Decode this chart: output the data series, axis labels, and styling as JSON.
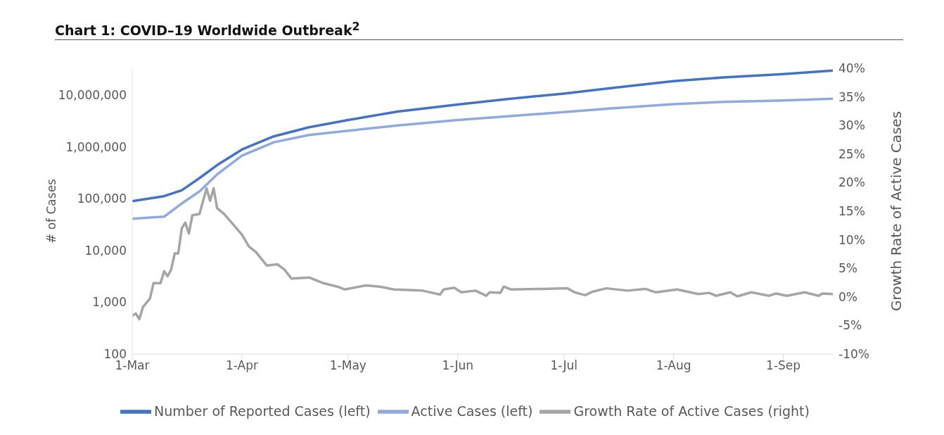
{
  "chart_data": {
    "type": "line",
    "title": "Chart 1: COVID–19 Worldwide Outbreak$^{2}$",
    "ylabel": "# of Cases",
    "y2label": "Growth Rate of Active Cases",
    "log": "y",
    "legend": "bottom",
    "line_style": "solid",
    "marker": "none",
    "xlim": [
      "--03-01",
      "--09-15"
    ],
    "xticks": [
      {
        "value": "--03-01",
        "label": "1-Mar"
      },
      {
        "value": "--04-01",
        "label": "1-Apr"
      },
      {
        "value": "--05-01",
        "label": "1-May"
      },
      {
        "value": "--06-01",
        "label": "1-Jun"
      },
      {
        "value": "--07-01",
        "label": "1-Jul"
      },
      {
        "value": "--08-01",
        "label": "1-Aug"
      },
      {
        "value": "--09-01",
        "label": "1-Sep"
      }
    ],
    "ylim": [
      100,
      33000000
    ],
    "yticks": [
      {
        "value": 100,
        "label": "100"
      },
      {
        "value": 1000,
        "label": "1,000"
      },
      {
        "value": 10000,
        "label": "10,000"
      },
      {
        "value": 100000,
        "label": "100,000"
      },
      {
        "value": 1000000,
        "label": "1,000,000"
      },
      {
        "value": 10000000,
        "label": "10,000,000"
      }
    ],
    "y2lim": [
      -10,
      40
    ],
    "y2ticks": [
      {
        "value": -10,
        "label": "-10%"
      },
      {
        "value": -5,
        "label": "-5%"
      },
      {
        "value": 0,
        "label": "0%"
      },
      {
        "value": 5,
        "label": "5%"
      },
      {
        "value": 10,
        "label": "10%"
      },
      {
        "value": 15,
        "label": "15%"
      },
      {
        "value": 20,
        "label": "20%"
      },
      {
        "value": 25,
        "label": "25%"
      },
      {
        "value": 30,
        "label": "30%"
      },
      {
        "value": 35,
        "label": "35%"
      },
      {
        "value": 40,
        "label": "40%"
      }
    ],
    "series": [
      {
        "name": "Number of Reported Cases (left)",
        "color": "#4472c4",
        "x": [
          "--03-01",
          "--03-10",
          "--03-15",
          "--03-20",
          "--03-25",
          "--04-01",
          "--04-10",
          "--04-20",
          "--05-01",
          "--05-15",
          "--06-01",
          "--06-15",
          "--07-01",
          "--07-15",
          "--08-01",
          "--08-15",
          "--09-01",
          "--09-15"
        ],
        "values": [
          90000,
          112000,
          145000,
          250000,
          445000,
          890000,
          1600000,
          2400000,
          3300000,
          4800000,
          6600000,
          8400000,
          10700000,
          13800000,
          18600000,
          22000000,
          25400000,
          29800000
        ]
      },
      {
        "name": "Active Cases (left)",
        "color": "#8faadc",
        "x": [
          "--03-01",
          "--03-10",
          "--03-15",
          "--03-20",
          "--03-25",
          "--04-01",
          "--04-10",
          "--04-20",
          "--05-01",
          "--05-15",
          "--06-01",
          "--06-15",
          "--07-01",
          "--07-15",
          "--08-01",
          "--08-15",
          "--09-01",
          "--09-15"
        ],
        "values": [
          41000,
          45000,
          81000,
          138000,
          295000,
          680000,
          1230000,
          1700000,
          2050000,
          2600000,
          3300000,
          3900000,
          4700000,
          5600000,
          6700000,
          7400000,
          7900000,
          8500000
        ]
      },
      {
        "name": "Growth Rate of Active Cases (right)",
        "color": "#a5a5a5",
        "axis": "y2",
        "x": [
          "--03-01",
          "--03-02",
          "--03-03",
          "--03-04",
          "--03-06",
          "--03-07",
          "--03-09",
          "--03-10",
          "--03-11",
          "--03-12",
          "--03-13",
          "--03-14",
          "--03-15",
          "--03-16",
          "--03-17",
          "--03-18",
          "--03-20",
          "--03-22",
          "--03-23",
          "--03-24",
          "--03-25",
          "--03-27",
          "--04-01",
          "--04-03",
          "--04-05",
          "--04-08",
          "--04-11",
          "--04-13",
          "--04-15",
          "--04-20",
          "--04-24",
          "--04-28",
          "--04-30",
          "--05-06",
          "--05-10",
          "--05-14",
          "--05-22",
          "--05-27",
          "--05-28",
          "--05-31",
          "--06-02",
          "--06-06",
          "--06-09",
          "--06-10",
          "--06-13",
          "--06-14",
          "--06-16",
          "--06-25",
          "--07-02",
          "--07-04",
          "--07-07",
          "--07-09",
          "--07-13",
          "--07-19",
          "--07-24",
          "--07-27",
          "--08-02",
          "--08-08",
          "--08-11",
          "--08-13",
          "--08-17",
          "--08-19",
          "--08-23",
          "--08-28",
          "--08-30",
          "--09-02",
          "--09-07",
          "--09-11",
          "--09-12",
          "--09-15"
        ],
        "values": [
          -3.3,
          -2.9,
          -3.9,
          -1.8,
          -0.3,
          2.4,
          2.4,
          4.5,
          3.6,
          4.8,
          7.6,
          7.6,
          12.0,
          13.0,
          11.1,
          14.3,
          14.5,
          19.0,
          16.8,
          19.0,
          15.5,
          14.5,
          10.9,
          8.8,
          7.8,
          5.5,
          5.7,
          4.8,
          3.2,
          3.4,
          2.4,
          1.8,
          1.3,
          2.0,
          1.8,
          1.3,
          1.1,
          0.4,
          1.3,
          1.6,
          0.8,
          1.1,
          0.2,
          0.8,
          0.7,
          1.8,
          1.3,
          1.4,
          1.5,
          0.8,
          0.3,
          0.9,
          1.5,
          1.1,
          1.4,
          0.8,
          1.3,
          0.5,
          0.7,
          0.2,
          0.8,
          0.1,
          0.8,
          0.2,
          0.6,
          0.2,
          0.8,
          0.2,
          0.6,
          0.5
        ]
      }
    ]
  }
}
